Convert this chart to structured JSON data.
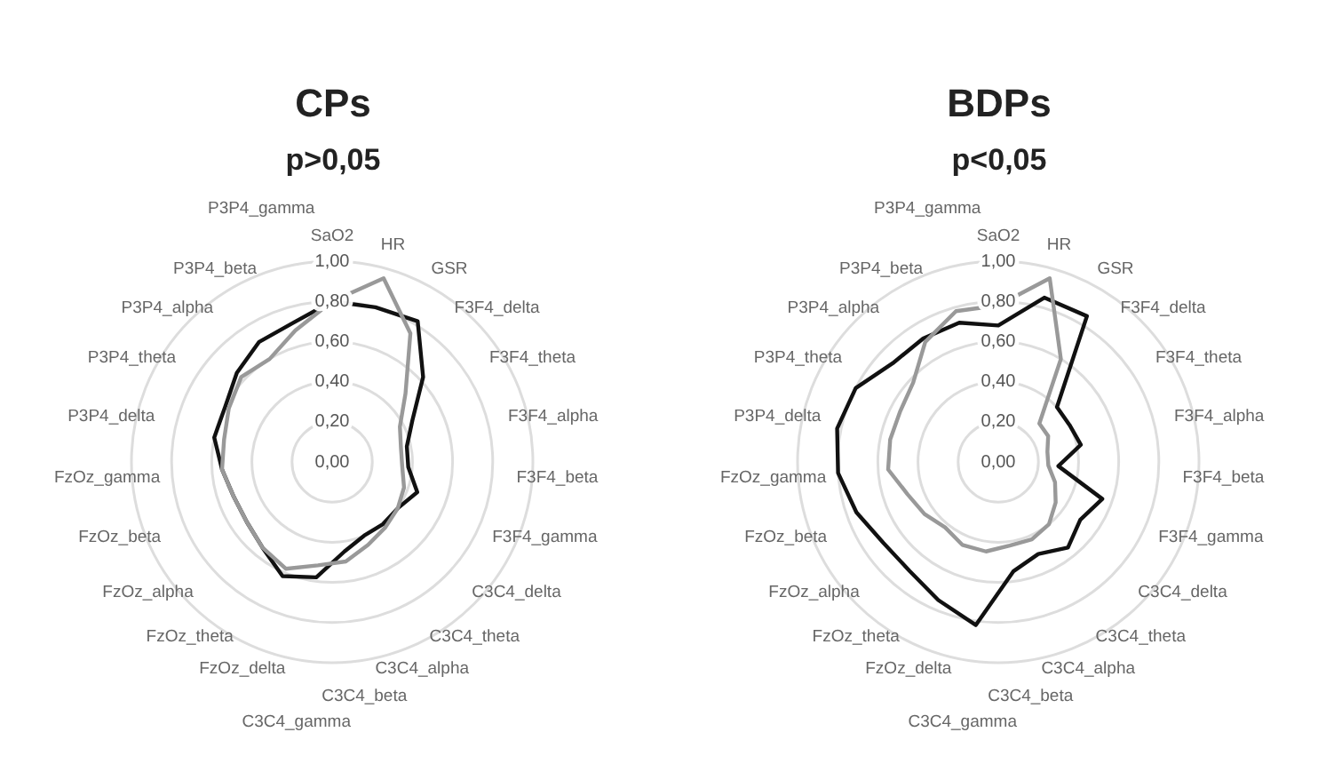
{
  "chart_data": [
    {
      "type": "radar",
      "title": "CPs",
      "subtitle": "p>0,05",
      "categories": [
        "SaO2",
        "HR",
        "GSR",
        "F3F4_delta",
        "F3F4_theta",
        "F3F4_alpha",
        "F3F4_beta",
        "F3F4_gamma",
        "C3C4_delta",
        "C3C4_theta",
        "C3C4_alpha",
        "C3C4_beta",
        "C3C4_gamma",
        "FzOz_delta",
        "FzOz_theta",
        "FzOz_alpha",
        "FzOz_beta",
        "FzOz_gamma",
        "P3P4_delta",
        "P3P4_theta",
        "P3P4_alpha",
        "P3P4_beta",
        "P3P4_gamma"
      ],
      "series": [
        {
          "color": "#999999",
          "values": [
            0.8,
            0.95,
            0.75,
            0.5,
            0.38,
            0.35,
            0.35,
            0.38,
            0.4,
            0.42,
            0.45,
            0.5,
            0.52,
            0.58,
            0.55,
            0.52,
            0.52,
            0.55,
            0.55,
            0.58,
            0.62,
            0.6,
            0.68
          ]
        },
        {
          "color": "#111111",
          "values": [
            0.8,
            0.8,
            0.82,
            0.62,
            0.45,
            0.38,
            0.38,
            0.45,
            0.4,
            0.4,
            0.4,
            0.45,
            0.58,
            0.62,
            0.55,
            0.52,
            0.52,
            0.55,
            0.6,
            0.6,
            0.65,
            0.7,
            0.72
          ]
        }
      ],
      "ylim": [
        0,
        1
      ],
      "yticks": [
        {
          "value": 0,
          "label": "0,00"
        },
        {
          "value": 0.2,
          "label": "0,20"
        },
        {
          "value": 0.4,
          "label": "0,40"
        },
        {
          "value": 0.6,
          "label": "0,60"
        },
        {
          "value": 0.8,
          "label": "0,80"
        },
        {
          "value": 1,
          "label": "1,00"
        }
      ],
      "grid": true,
      "legend": false,
      "marker": "none"
    },
    {
      "type": "radar",
      "title": "BDPs",
      "subtitle": "p<0,05",
      "categories": [
        "SaO2",
        "HR",
        "GSR",
        "F3F4_delta",
        "F3F4_theta",
        "F3F4_alpha",
        "F3F4_beta",
        "F3F4_gamma",
        "C3C4_delta",
        "C3C4_theta",
        "C3C4_alpha",
        "C3C4_beta",
        "C3C4_gamma",
        "FzOz_delta",
        "FzOz_theta",
        "FzOz_alpha",
        "FzOz_beta",
        "FzOz_gamma",
        "P3P4_delta",
        "P3P4_theta",
        "P3P4_alpha",
        "P3P4_beta",
        "P3P4_gamma"
      ],
      "series": [
        {
          "color": "#999999",
          "values": [
            0.78,
            0.95,
            0.6,
            0.28,
            0.28,
            0.25,
            0.25,
            0.3,
            0.35,
            0.4,
            0.42,
            0.42,
            0.45,
            0.45,
            0.42,
            0.45,
            0.48,
            0.55,
            0.55,
            0.55,
            0.58,
            0.7,
            0.78
          ]
        },
        {
          "color": "#111111",
          "values": [
            0.68,
            0.85,
            0.85,
            0.4,
            0.4,
            0.42,
            0.3,
            0.55,
            0.5,
            0.55,
            0.5,
            0.55,
            0.82,
            0.75,
            0.7,
            0.7,
            0.75,
            0.8,
            0.82,
            0.8,
            0.72,
            0.72,
            0.72
          ]
        }
      ],
      "ylim": [
        0,
        1
      ],
      "yticks": [
        {
          "value": 0,
          "label": "0,00"
        },
        {
          "value": 0.2,
          "label": "0,20"
        },
        {
          "value": 0.4,
          "label": "0,40"
        },
        {
          "value": 0.6,
          "label": "0,60"
        },
        {
          "value": 0.8,
          "label": "0,80"
        },
        {
          "value": 1,
          "label": "1,00"
        }
      ],
      "grid": true,
      "legend": false,
      "marker": "none"
    }
  ]
}
